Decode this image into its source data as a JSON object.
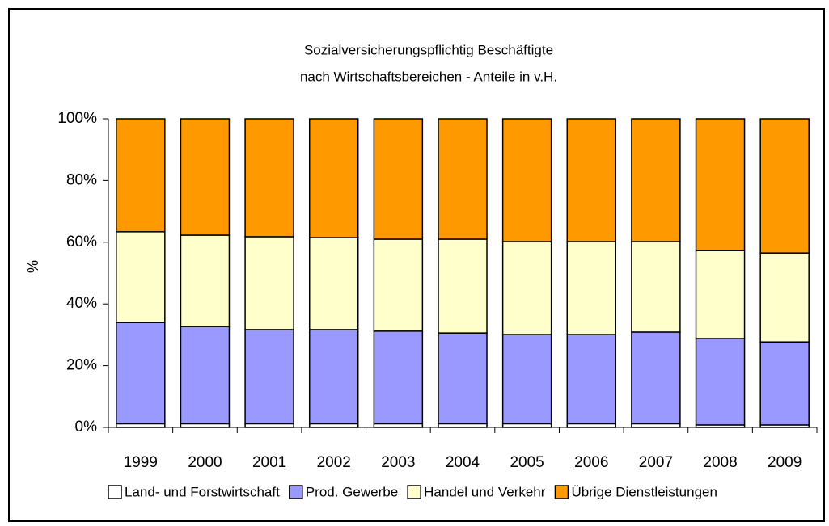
{
  "chart_data": {
    "type": "stacked_bar_percent",
    "title": [
      "Sozialversicherungspflichtig Beschäftigte",
      "nach Wirtschaftsbereichen - Anteile in v.H."
    ],
    "ylabel": "%",
    "categories": [
      "1999",
      "2000",
      "2001",
      "2002",
      "2003",
      "2004",
      "2005",
      "2006",
      "2007",
      "2008",
      "2009"
    ],
    "series": [
      {
        "name": "Land- und Forstwirtschaft",
        "color": "#ffffff",
        "values": [
          1.2,
          1.2,
          1.2,
          1.2,
          1.2,
          1.2,
          1.2,
          1.2,
          1.2,
          0.8,
          0.8
        ]
      },
      {
        "name": "Prod. Gewerbe",
        "color": "#9999ff",
        "values": [
          32.8,
          31.5,
          30.5,
          30.5,
          30.0,
          29.4,
          28.9,
          28.9,
          29.7,
          28.0,
          26.9
        ]
      },
      {
        "name": "Handel und Verkehr",
        "color": "#ffffcc",
        "values": [
          29.4,
          29.6,
          30.1,
          29.8,
          29.8,
          30.4,
          30.1,
          30.1,
          29.3,
          28.5,
          28.8
        ]
      },
      {
        "name": "Übrige Dienstleistungen",
        "color": "#ff9900",
        "values": [
          36.6,
          37.7,
          38.2,
          38.5,
          39.0,
          39.0,
          39.8,
          39.8,
          39.8,
          42.7,
          43.5
        ]
      }
    ],
    "ylim": [
      0,
      100
    ],
    "yticks": [
      {
        "value": 0,
        "label": "0%"
      },
      {
        "value": 20,
        "label": "20%"
      },
      {
        "value": 40,
        "label": "40%"
      },
      {
        "value": 60,
        "label": "60%"
      },
      {
        "value": 80,
        "label": "80%"
      },
      {
        "value": 100,
        "label": "100%"
      }
    ],
    "grid": false,
    "legend": "bottom"
  }
}
